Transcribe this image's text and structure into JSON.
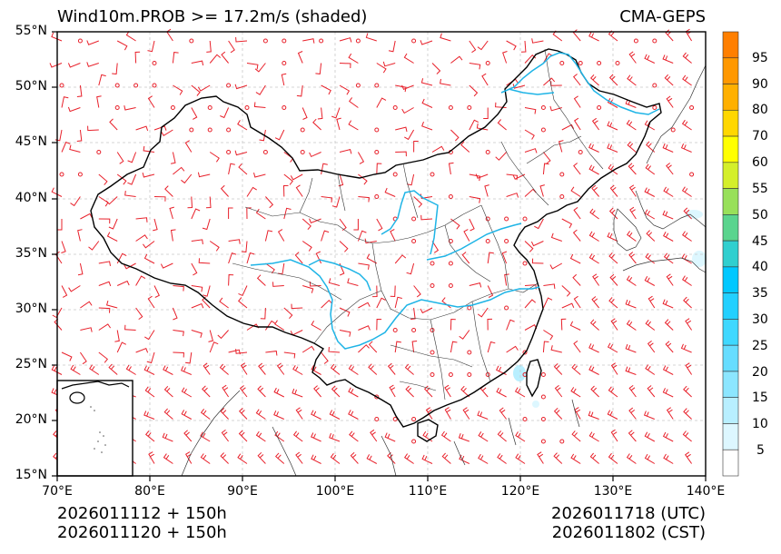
{
  "header": {
    "title_left": "Wind10m.PROB >= 17.2m/s (shaded)",
    "title_right": "CMA-GEPS"
  },
  "axes": {
    "y_ticks": [
      "55°N",
      "50°N",
      "45°N",
      "40°N",
      "35°N",
      "30°N",
      "25°N",
      "20°N",
      "15°N"
    ],
    "x_ticks": [
      "70°E",
      "80°E",
      "90°E",
      "100°E",
      "110°E",
      "120°E",
      "130°E",
      "140°E"
    ],
    "lon_range": [
      70,
      140
    ],
    "lat_range": [
      15,
      55
    ]
  },
  "colorbar": {
    "labels": [
      "95",
      "90",
      "80",
      "70",
      "60",
      "55",
      "50",
      "45",
      "40",
      "35",
      "30",
      "25",
      "20",
      "15",
      "10",
      "5"
    ],
    "colors_top_to_bottom": [
      "#ff7f00",
      "#ff9800",
      "#ffb000",
      "#ffd700",
      "#ffff00",
      "#d4ef2a",
      "#98e05a",
      "#5ad48e",
      "#30cfcf",
      "#00c8ff",
      "#22d0ff",
      "#3fd8ff",
      "#66ddff",
      "#8ce6ff",
      "#b8efff",
      "#ddf7ff",
      "#ffffff"
    ]
  },
  "footer": {
    "init_utc": "2026011112 + 150h",
    "init_cst": "2026011120 + 150h",
    "valid_utc": "2026011718 (UTC)",
    "valid_cst": "2026011802 (CST)"
  },
  "map": {
    "barb_color": "#e8202a",
    "border_color": "#000000",
    "river_color": "#1eb4e6",
    "grid_color": "#c8c8c8",
    "shaded_regions": [
      {
        "name": "taiwan-strait",
        "lon": 120.3,
        "lat": 24.3,
        "level": "5-10"
      },
      {
        "name": "japan-coast",
        "lon": 138.5,
        "lat": 34.5,
        "level": "5-10"
      },
      {
        "name": "korea-east",
        "lon": 139.0,
        "lat": 39.0,
        "level": "5-10"
      }
    ]
  }
}
